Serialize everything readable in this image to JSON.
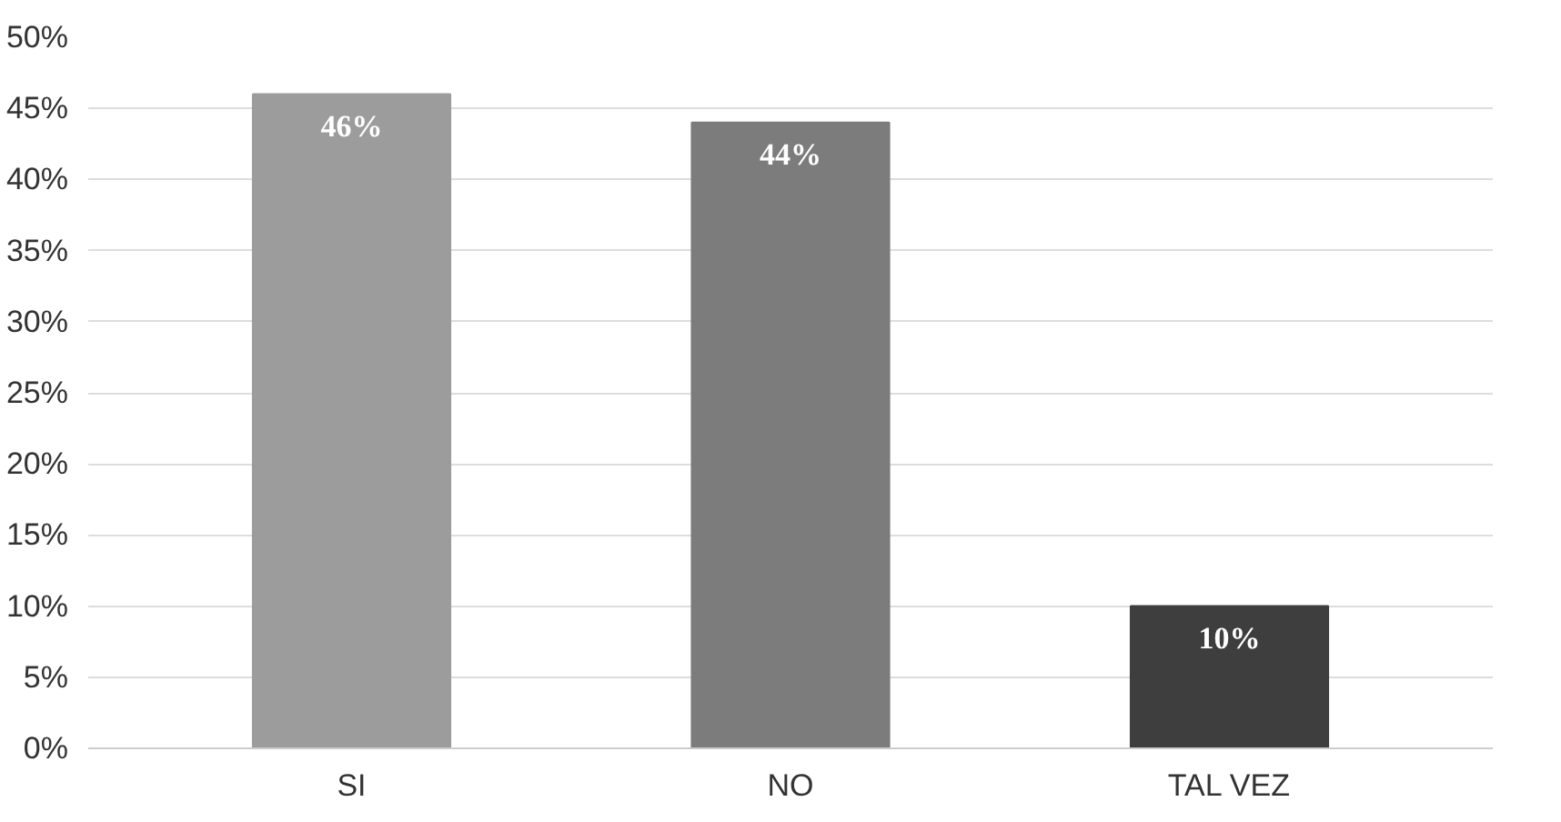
{
  "chart_data": {
    "type": "bar",
    "categories": [
      "SI",
      "NO",
      "TAL VEZ"
    ],
    "values": [
      46,
      44,
      10
    ],
    "colors": [
      "#9c9c9c",
      "#7c7c7c",
      "#3e3e3e"
    ],
    "value_labels": [
      "46%",
      "44%",
      "10%"
    ],
    "ylim": [
      0,
      50
    ],
    "yticks": [
      {
        "value": 0,
        "label": "0%"
      },
      {
        "value": 5,
        "label": "5%"
      },
      {
        "value": 10,
        "label": "10%"
      },
      {
        "value": 15,
        "label": "15%"
      },
      {
        "value": 20,
        "label": "20%"
      },
      {
        "value": 25,
        "label": "25%"
      },
      {
        "value": 30,
        "label": "30%"
      },
      {
        "value": 35,
        "label": "35%"
      },
      {
        "value": 40,
        "label": "40%"
      },
      {
        "value": 45,
        "label": "45%"
      },
      {
        "value": 50,
        "label": "50%"
      }
    ],
    "grid": "y"
  }
}
